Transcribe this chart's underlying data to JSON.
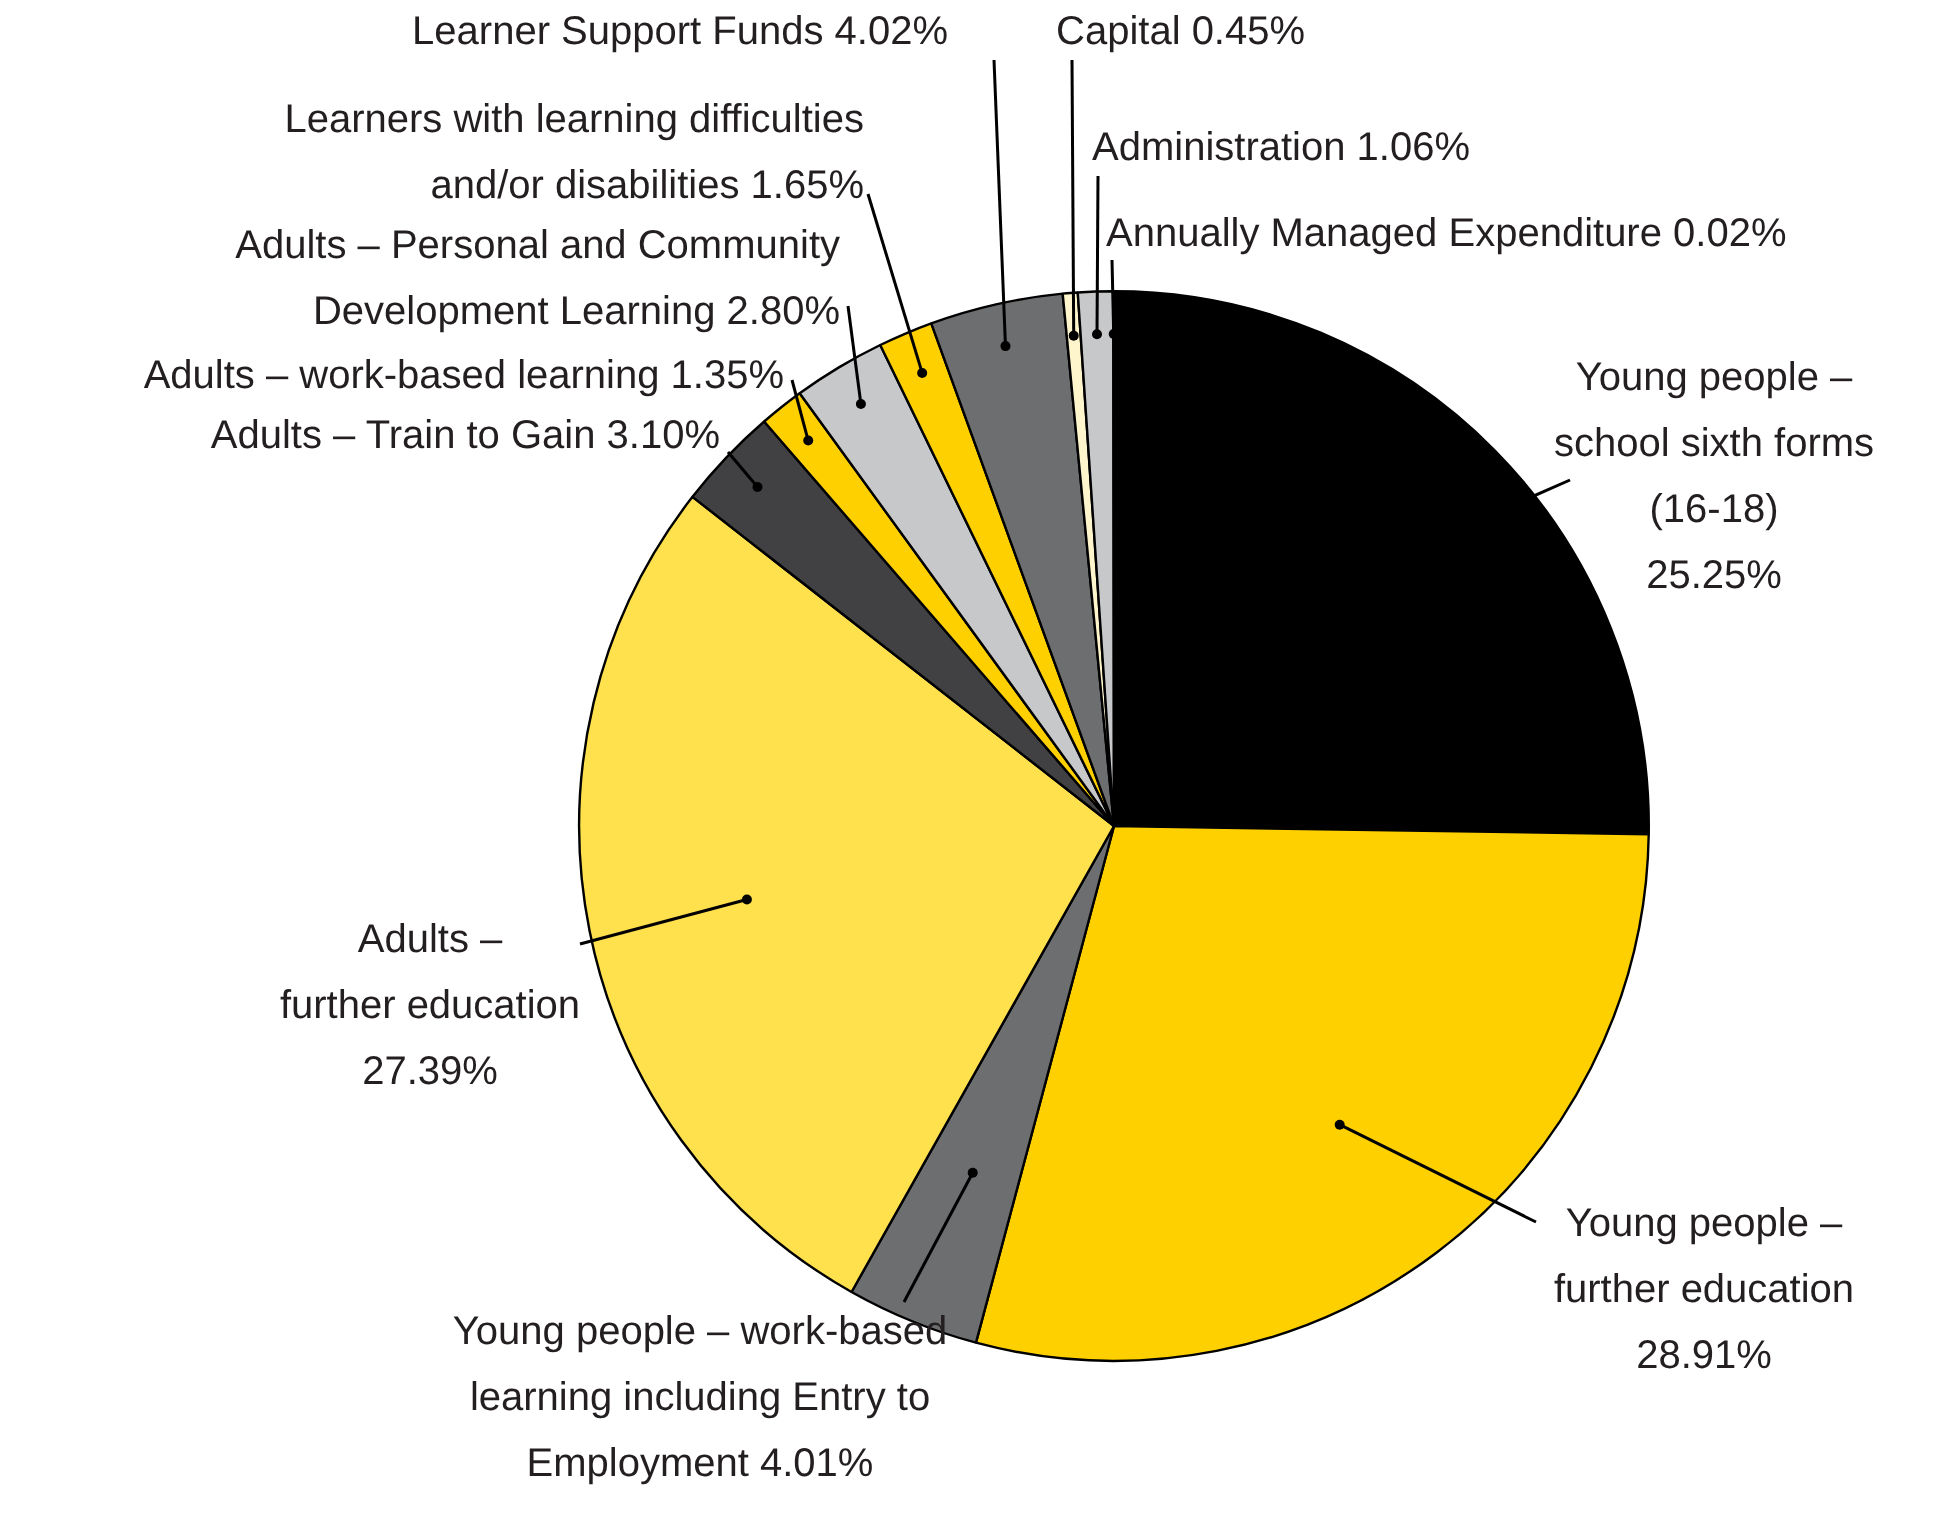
{
  "chart_data": {
    "type": "pie",
    "categories": [
      "Young people – school sixth forms (16-18)",
      "Young people – further education",
      "Young people – work-based learning including Entry to Employment",
      "Adults – further education",
      "Adults – Train to Gain",
      "Adults – work-based learning",
      "Adults – Personal and Community Development Learning",
      "Learners with learning difficulties and/or disabilities",
      "Learner Support Funds",
      "Capital",
      "Administration",
      "Annually Managed Expenditure"
    ],
    "values": [
      25.25,
      28.91,
      4.01,
      27.39,
      3.1,
      1.35,
      2.8,
      1.65,
      4.02,
      0.45,
      1.06,
      0.02
    ],
    "value_labels": [
      "25.25%",
      "28.91%",
      "4.01%",
      "27.39%",
      "3.10%",
      "1.35%",
      "2.80%",
      "1.65%",
      "4.02%",
      "0.45%",
      "1.06%",
      "0.02%"
    ],
    "colors": [
      "#000000",
      "#ffd000",
      "#6d6e70",
      "#ffe04d",
      "#414042",
      "#ffd000",
      "#c7c8ca",
      "#ffd000",
      "#6d6e70",
      "#fff5cc",
      "#c7c8ca",
      "#ffd000"
    ],
    "legend": false
  }
}
